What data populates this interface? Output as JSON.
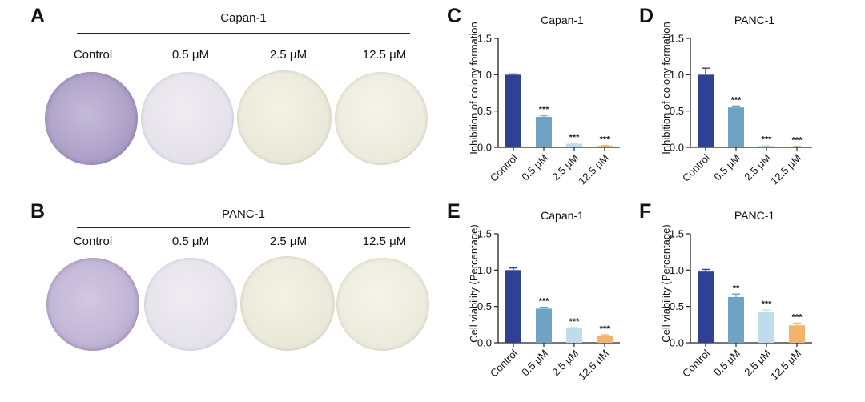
{
  "panels": {
    "A": {
      "letter": "A",
      "cell_line": "Capan-1"
    },
    "B": {
      "letter": "B",
      "cell_line": "PANC-1"
    }
  },
  "conditions": [
    "Control",
    "0.5 μM",
    "2.5 μM",
    "12.5 μM"
  ],
  "colors": {
    "control_bar": "#2e4192",
    "bar_0_5": "#6da4c4",
    "bar_2_5": "#bcdde9",
    "bar_12_5": "#f2b36c",
    "dish_control": "#b4a8cc",
    "dish_treated_light": "#e8e6ee",
    "dish_treated_cream": "#ecebdd"
  },
  "chart_data": [
    {
      "panel": "C",
      "type": "bar",
      "title": "Capan-1",
      "ylabel": "Inhibition of colony formation",
      "xlabel": "",
      "categories": [
        "Control",
        "0.5 μM",
        "2.5 μM",
        "12.5 μM"
      ],
      "values": [
        1.0,
        0.42,
        0.05,
        0.02
      ],
      "errors": [
        0.01,
        0.02,
        0.005,
        0.005
      ],
      "significance": [
        "",
        "***",
        "***",
        "***"
      ],
      "ylim": [
        0.0,
        1.5
      ],
      "yticks": [
        "0.0",
        "0.5",
        "1.0",
        "1.5"
      ],
      "grid": false
    },
    {
      "panel": "D",
      "type": "bar",
      "title": "PANC-1",
      "ylabel": "Inhibition of colony formation",
      "xlabel": "",
      "categories": [
        "Control",
        "0.5 μM",
        "2.5 μM",
        "12.5 μM"
      ],
      "values": [
        1.0,
        0.55,
        0.02,
        0.01
      ],
      "errors": [
        0.09,
        0.02,
        0.005,
        0.005
      ],
      "significance": [
        "",
        "***",
        "***",
        "***"
      ],
      "ylim": [
        0.0,
        1.5
      ],
      "yticks": [
        "0.0",
        "0.5",
        "1.0",
        "1.5"
      ],
      "grid": false
    },
    {
      "panel": "E",
      "type": "bar",
      "title": "Capan-1",
      "ylabel": "Cell viability (Percentage)",
      "xlabel": "",
      "categories": [
        "Control",
        "0.5 μM",
        "2.5 μM",
        "12.5 μM"
      ],
      "values": [
        1.0,
        0.47,
        0.2,
        0.1
      ],
      "errors": [
        0.03,
        0.02,
        0.01,
        0.01
      ],
      "significance": [
        "",
        "***",
        "***",
        "***"
      ],
      "ylim": [
        0.0,
        1.5
      ],
      "yticks": [
        "0.0",
        "0.5",
        "1.0",
        "1.5"
      ],
      "grid": false
    },
    {
      "panel": "F",
      "type": "bar",
      "title": "PANC-1",
      "ylabel": "Cell viability (Percentage)",
      "xlabel": "",
      "categories": [
        "Control",
        "0.5 μM",
        "2.5 μM",
        "12.5 μM"
      ],
      "values": [
        0.98,
        0.63,
        0.42,
        0.24
      ],
      "errors": [
        0.03,
        0.04,
        0.03,
        0.03
      ],
      "significance": [
        "",
        "**",
        "***",
        "***"
      ],
      "ylim": [
        0.0,
        1.5
      ],
      "yticks": [
        "0.0",
        "0.5",
        "1.0",
        "1.5"
      ],
      "grid": false
    }
  ]
}
